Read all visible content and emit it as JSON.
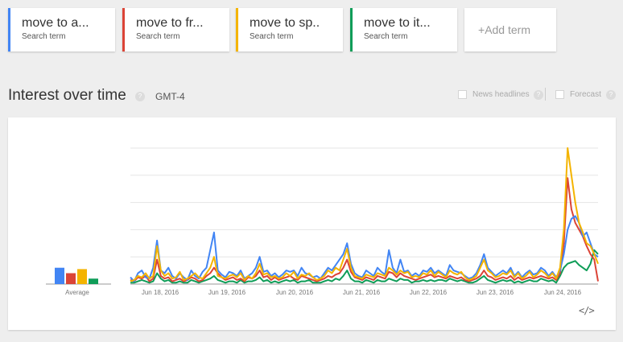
{
  "terms": [
    {
      "name": "move to a...",
      "sub": "Search term",
      "color": "#4285f4"
    },
    {
      "name": "move to fr...",
      "sub": "Search term",
      "color": "#db4437"
    },
    {
      "name": "move to sp..",
      "sub": "Search term",
      "color": "#f4b400"
    },
    {
      "name": "move to it...",
      "sub": "Search term",
      "color": "#0f9d58"
    }
  ],
  "add_term": {
    "plus": "+",
    "label": "Add term"
  },
  "section": {
    "title": "Interest over time",
    "help": "?",
    "timezone": "GMT-4"
  },
  "options": {
    "news_label": "News headlines",
    "forecast_label": "Forecast",
    "help": "?"
  },
  "embed": {
    "icon": "embed-code-icon",
    "label": "</>"
  },
  "chart_data": {
    "type": "line",
    "xlabel": "",
    "ylabel": "",
    "ylim": [
      0,
      100
    ],
    "grid": true,
    "x_ticks": [
      "Jun 18, 2016",
      "Jun 19, 2016",
      "Jun 20, 2016",
      "Jun 21, 2016",
      "Jun 22, 2016",
      "Jun 23, 2016",
      "Jun 24, 2016"
    ],
    "average_label": "Average",
    "averages": [
      12,
      8,
      11,
      4
    ],
    "series": [
      {
        "name": "move to a...",
        "color": "#4285f4",
        "values": [
          5,
          2,
          8,
          10,
          5,
          4,
          12,
          32,
          10,
          8,
          12,
          6,
          4,
          8,
          5,
          3,
          10,
          6,
          4,
          9,
          12,
          25,
          38,
          10,
          7,
          5,
          9,
          8,
          6,
          10,
          4,
          6,
          8,
          12,
          20,
          9,
          10,
          6,
          8,
          5,
          7,
          10,
          9,
          10,
          6,
          12,
          8,
          7,
          5,
          6,
          4,
          8,
          12,
          10,
          14,
          18,
          22,
          30,
          15,
          8,
          6,
          5,
          10,
          8,
          6,
          12,
          9,
          7,
          25,
          12,
          8,
          18,
          9,
          10,
          6,
          8,
          6,
          10,
          9,
          12,
          8,
          10,
          8,
          6,
          14,
          10,
          9,
          8,
          6,
          4,
          5,
          8,
          14,
          22,
          12,
          9,
          6,
          8,
          10,
          8,
          12,
          6,
          9,
          5,
          8,
          10,
          7,
          8,
          12,
          10,
          6,
          9,
          5,
          10,
          22,
          40,
          48,
          50,
          45,
          35,
          38,
          30,
          22,
          20
        ]
      },
      {
        "name": "move to fr...",
        "color": "#db4437",
        "values": [
          3,
          2,
          5,
          4,
          6,
          2,
          4,
          18,
          6,
          4,
          5,
          2,
          3,
          4,
          2,
          3,
          5,
          4,
          2,
          3,
          6,
          8,
          12,
          8,
          5,
          3,
          4,
          5,
          3,
          4,
          2,
          5,
          4,
          6,
          10,
          5,
          6,
          3,
          5,
          3,
          4,
          5,
          6,
          4,
          3,
          6,
          5,
          4,
          3,
          2,
          3,
          4,
          6,
          5,
          7,
          8,
          12,
          18,
          9,
          5,
          4,
          3,
          5,
          4,
          3,
          6,
          5,
          4,
          9,
          8,
          5,
          8,
          6,
          5,
          4,
          3,
          4,
          5,
          6,
          7,
          5,
          6,
          5,
          4,
          6,
          5,
          4,
          5,
          3,
          2,
          3,
          4,
          6,
          10,
          6,
          5,
          3,
          4,
          5,
          4,
          6,
          3,
          5,
          3,
          4,
          5,
          4,
          5,
          6,
          5,
          4,
          5,
          3,
          8,
          30,
          78,
          55,
          45,
          40,
          35,
          28,
          22,
          18,
          2
        ]
      },
      {
        "name": "move to sp..",
        "color": "#f4b400",
        "values": [
          2,
          3,
          6,
          5,
          8,
          4,
          6,
          28,
          10,
          6,
          8,
          4,
          5,
          9,
          3,
          4,
          6,
          8,
          5,
          4,
          8,
          12,
          20,
          6,
          5,
          4,
          6,
          7,
          5,
          8,
          3,
          6,
          4,
          8,
          15,
          7,
          8,
          5,
          6,
          4,
          5,
          8,
          6,
          9,
          4,
          7,
          6,
          8,
          5,
          3,
          4,
          6,
          10,
          8,
          12,
          10,
          18,
          26,
          12,
          6,
          5,
          4,
          7,
          6,
          5,
          8,
          7,
          6,
          12,
          10,
          7,
          10,
          8,
          9,
          5,
          6,
          5,
          8,
          7,
          10,
          6,
          9,
          7,
          5,
          10,
          8,
          7,
          9,
          5,
          3,
          4,
          6,
          12,
          18,
          10,
          8,
          5,
          6,
          8,
          7,
          10,
          5,
          8,
          4,
          6,
          9,
          5,
          7,
          10,
          8,
          5,
          8,
          4,
          12,
          40,
          100,
          80,
          60,
          45,
          38,
          30,
          28,
          22,
          15
        ]
      },
      {
        "name": "move to it...",
        "color": "#0f9d58",
        "values": [
          1,
          1,
          2,
          3,
          2,
          1,
          2,
          8,
          4,
          2,
          3,
          1,
          1,
          2,
          1,
          1,
          3,
          2,
          1,
          2,
          3,
          4,
          6,
          3,
          2,
          1,
          2,
          2,
          1,
          3,
          1,
          2,
          2,
          3,
          5,
          2,
          3,
          1,
          2,
          1,
          2,
          3,
          2,
          3,
          1,
          2,
          2,
          3,
          1,
          1,
          1,
          2,
          3,
          2,
          4,
          3,
          6,
          10,
          4,
          2,
          2,
          1,
          3,
          2,
          1,
          3,
          2,
          2,
          4,
          3,
          2,
          4,
          3,
          3,
          1,
          2,
          2,
          3,
          2,
          3,
          2,
          3,
          3,
          2,
          4,
          3,
          2,
          3,
          2,
          1,
          1,
          2,
          4,
          6,
          3,
          2,
          1,
          2,
          3,
          2,
          3,
          1,
          2,
          1,
          2,
          3,
          2,
          2,
          4,
          3,
          2,
          3,
          1,
          6,
          12,
          15,
          16,
          17,
          14,
          12,
          10,
          15,
          25,
          22
        ]
      }
    ]
  }
}
